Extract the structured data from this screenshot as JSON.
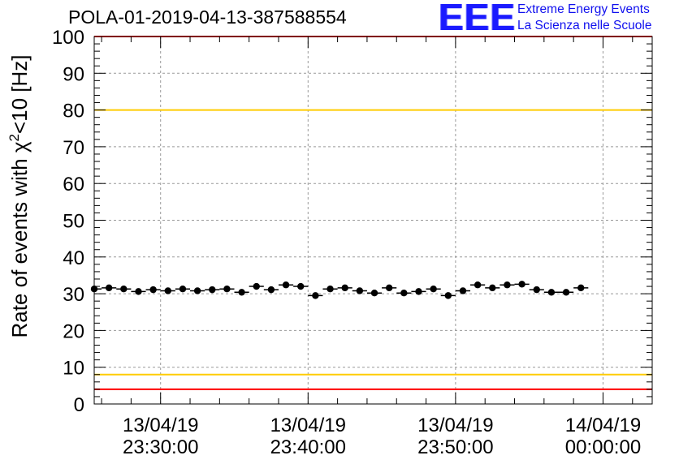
{
  "header": {
    "title": "POLA-01-2019-04-13-387588554",
    "logo_mark": "EEE",
    "logo_line1": "Extreme Energy Events",
    "logo_line2": "La Scienza nelle Scuole"
  },
  "chart_data": {
    "type": "scatter",
    "title": "POLA-01-2019-04-13-387588554",
    "ylabel": "Rate of events with χ²<10 [Hz]",
    "xlabel": "",
    "ylim": [
      0,
      100
    ],
    "xlim": [
      "13/04/19 23:25:30",
      "14/04/19 00:03:20"
    ],
    "yticks": [
      0,
      10,
      20,
      30,
      40,
      50,
      60,
      70,
      80,
      90,
      100
    ],
    "xticks": [
      {
        "date": "13/04/19",
        "time": "23:30:00"
      },
      {
        "date": "13/04/19",
        "time": "23:40:00"
      },
      {
        "date": "13/04/19",
        "time": "23:50:00"
      },
      {
        "date": "14/04/19",
        "time": "00:00:00"
      }
    ],
    "grid": true,
    "reference_lines": [
      {
        "y": 100,
        "color": "#ff0000"
      },
      {
        "y": 80,
        "color": "#ffcc00"
      },
      {
        "y": 8,
        "color": "#ffcc00"
      },
      {
        "y": 4,
        "color": "#ff0000"
      }
    ],
    "series": [
      {
        "marker": "filled-circle-with-x-error-bar",
        "color": "#000000",
        "points": [
          {
            "x": "13/04/19 23:25:30",
            "y": 31.3
          },
          {
            "x": "13/04/19 23:26:30",
            "y": 31.6
          },
          {
            "x": "13/04/19 23:27:30",
            "y": 31.3
          },
          {
            "x": "13/04/19 23:28:30",
            "y": 30.6
          },
          {
            "x": "13/04/19 23:29:30",
            "y": 31.1
          },
          {
            "x": "13/04/19 23:30:30",
            "y": 30.8
          },
          {
            "x": "13/04/19 23:31:30",
            "y": 31.3
          },
          {
            "x": "13/04/19 23:32:30",
            "y": 30.8
          },
          {
            "x": "13/04/19 23:33:30",
            "y": 31.1
          },
          {
            "x": "13/04/19 23:34:30",
            "y": 31.3
          },
          {
            "x": "13/04/19 23:35:30",
            "y": 30.4
          },
          {
            "x": "13/04/19 23:36:30",
            "y": 32.0
          },
          {
            "x": "13/04/19 23:37:30",
            "y": 31.1
          },
          {
            "x": "13/04/19 23:38:30",
            "y": 32.4
          },
          {
            "x": "13/04/19 23:39:30",
            "y": 32.0
          },
          {
            "x": "13/04/19 23:40:30",
            "y": 29.5
          },
          {
            "x": "13/04/19 23:41:30",
            "y": 31.3
          },
          {
            "x": "13/04/19 23:42:30",
            "y": 31.6
          },
          {
            "x": "13/04/19 23:43:30",
            "y": 30.8
          },
          {
            "x": "13/04/19 23:44:30",
            "y": 30.2
          },
          {
            "x": "13/04/19 23:45:30",
            "y": 31.6
          },
          {
            "x": "13/04/19 23:46:30",
            "y": 30.2
          },
          {
            "x": "13/04/19 23:47:30",
            "y": 30.6
          },
          {
            "x": "13/04/19 23:48:30",
            "y": 31.3
          },
          {
            "x": "13/04/19 23:49:30",
            "y": 29.5
          },
          {
            "x": "13/04/19 23:50:30",
            "y": 30.8
          },
          {
            "x": "13/04/19 23:51:30",
            "y": 32.4
          },
          {
            "x": "13/04/19 23:52:30",
            "y": 31.6
          },
          {
            "x": "13/04/19 23:53:30",
            "y": 32.4
          },
          {
            "x": "13/04/19 23:54:30",
            "y": 32.6
          },
          {
            "x": "13/04/19 23:55:30",
            "y": 31.1
          },
          {
            "x": "13/04/19 23:56:30",
            "y": 30.4
          },
          {
            "x": "13/04/19 23:57:30",
            "y": 30.4
          },
          {
            "x": "13/04/19 23:58:30",
            "y": 31.6
          }
        ]
      }
    ]
  }
}
